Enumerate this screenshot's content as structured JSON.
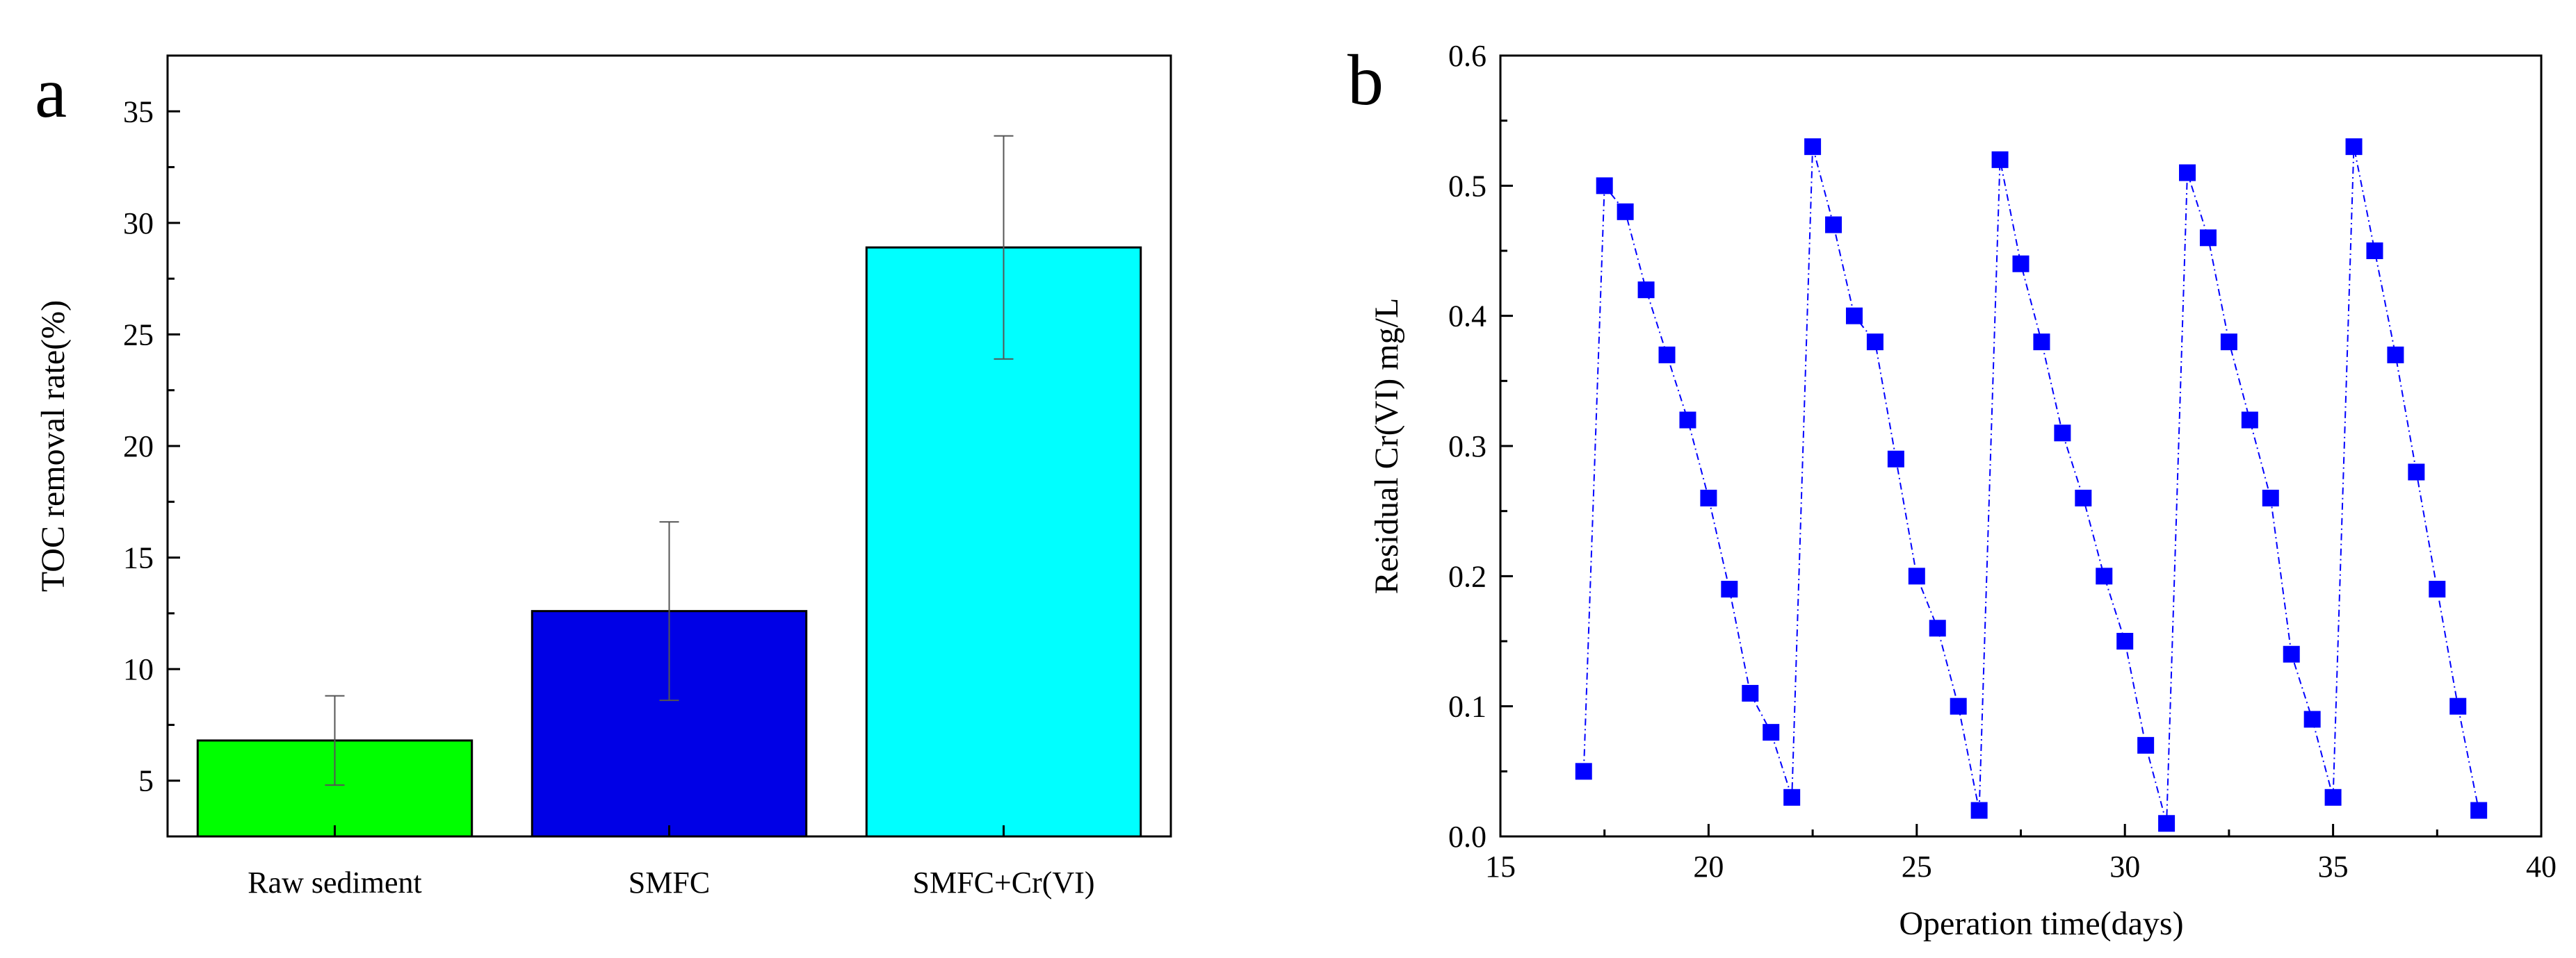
{
  "chart_data": [
    {
      "panel_label": "a",
      "type": "bar",
      "title": "",
      "xlabel": "",
      "ylabel": "TOC removal rate(%)",
      "categories": [
        "Raw sediment",
        "SMFC",
        "SMFC+Cr(VI)"
      ],
      "values": [
        6.8,
        12.6,
        28.9
      ],
      "errors": [
        2.0,
        4.0,
        5.0
      ],
      "bar_colors": [
        "#00ff00",
        "#0000e6",
        "#00ffff"
      ],
      "ylim": [
        2.5,
        37.5
      ],
      "yticks": [
        5,
        10,
        15,
        20,
        25,
        30,
        35
      ],
      "ytick_labels": [
        "5",
        "10",
        "15",
        "20",
        "25",
        "30",
        "35"
      ],
      "grid": false
    },
    {
      "panel_label": "b",
      "type": "line",
      "title": "",
      "xlabel": "Operation time(days)",
      "ylabel": "Residual Cr(VI) mg/L",
      "xlim": [
        15,
        40
      ],
      "ylim": [
        0.0,
        0.6
      ],
      "xticks": [
        15,
        20,
        25,
        30,
        35,
        40
      ],
      "xtick_labels": [
        "15",
        "20",
        "25",
        "30",
        "35",
        "40"
      ],
      "yticks": [
        0.0,
        0.1,
        0.2,
        0.3,
        0.4,
        0.5,
        0.6
      ],
      "ytick_labels": [
        "0.0",
        "0.1",
        "0.2",
        "0.3",
        "0.4",
        "0.5",
        "0.6"
      ],
      "grid": false,
      "series": [
        {
          "name": "Residual Cr(VI)",
          "color": "#0000ff",
          "marker": "square",
          "line_style": "dash-dot",
          "x": [
            17,
            17.5,
            18,
            18.5,
            19,
            19.5,
            20,
            20.5,
            21,
            21.5,
            22,
            22.5,
            23,
            23.5,
            24,
            24.5,
            25,
            25.5,
            26,
            26.5,
            27,
            27.5,
            28,
            28.5,
            29,
            29.5,
            30,
            30.5,
            31,
            31.5,
            32,
            32.5,
            33,
            33.5,
            34,
            34.5,
            35,
            35.5,
            36,
            36.5,
            37,
            37.5,
            38,
            38.5
          ],
          "y": [
            0.05,
            0.5,
            0.48,
            0.42,
            0.37,
            0.32,
            0.26,
            0.19,
            0.11,
            0.08,
            0.03,
            0.53,
            0.47,
            0.4,
            0.38,
            0.29,
            0.2,
            0.16,
            0.1,
            0.02,
            0.52,
            0.44,
            0.38,
            0.31,
            0.26,
            0.2,
            0.15,
            0.07,
            0.01,
            0.51,
            0.46,
            0.38,
            0.32,
            0.26,
            0.14,
            0.09,
            0.03,
            0.53,
            0.45,
            0.37,
            0.28,
            0.19,
            0.1,
            0.02
          ]
        }
      ]
    }
  ]
}
